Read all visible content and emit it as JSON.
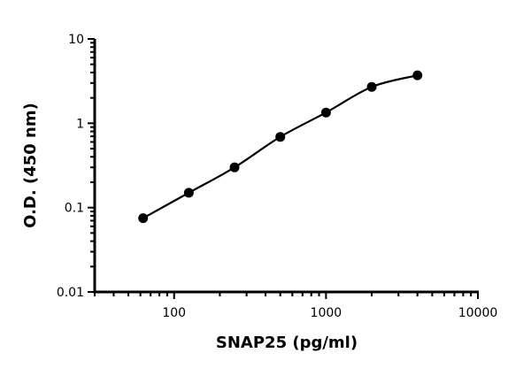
{
  "chart_data": {
    "type": "scatter",
    "title": "",
    "xlabel": "SNAP25 (pg/ml)",
    "ylabel": "O.D. (450 nm)",
    "x_scale": "log",
    "y_scale": "log",
    "xlim": [
      30,
      10000
    ],
    "ylim": [
      0.01,
      10
    ],
    "x_ticks": [
      100,
      1000,
      10000
    ],
    "x_tick_labels": [
      "100",
      "1000",
      "10000"
    ],
    "y_ticks": [
      0.01,
      0.1,
      1,
      10
    ],
    "y_tick_labels": [
      "0.01",
      "0.1",
      "1",
      "10"
    ],
    "grid": false,
    "fit_curve": true,
    "series": [
      {
        "x": [
          62.5,
          125,
          250,
          500,
          1000,
          2000,
          4000
        ],
        "y": [
          0.075,
          0.15,
          0.3,
          0.69,
          1.34,
          2.7,
          3.7
        ]
      }
    ],
    "colors": {
      "marker": "#000000",
      "line": "#000000"
    }
  }
}
